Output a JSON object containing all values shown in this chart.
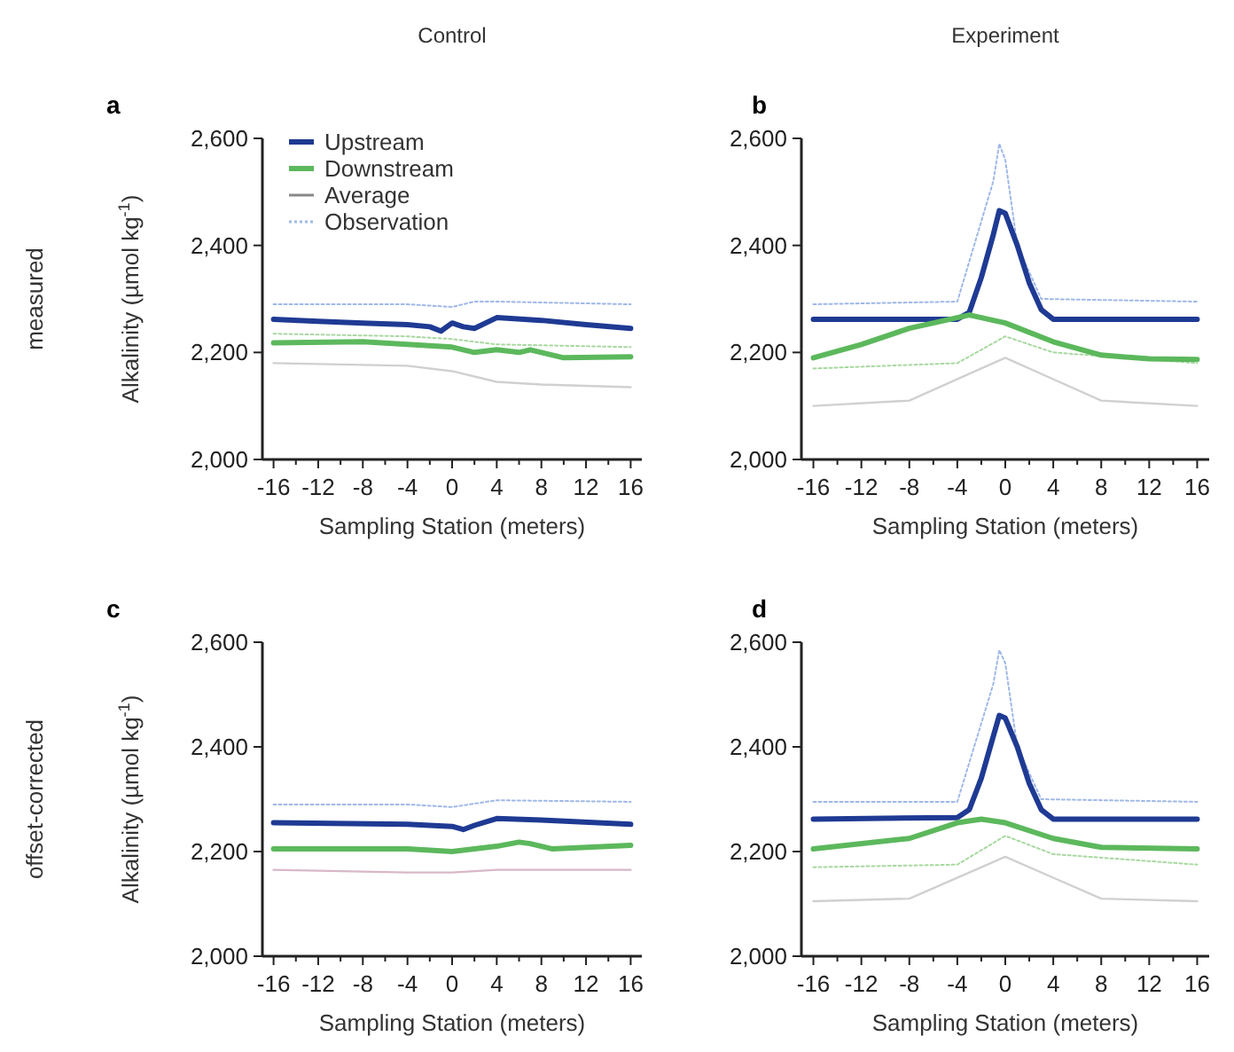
{
  "chart_data": [
    {
      "type": "line",
      "title": "Control",
      "subtitle": "a",
      "ylabel": "Alkalinity (µmol kg$^{-1}$)",
      "xlabel": "Sampling Station (meters)",
      "annotations": [
        "measured",
        "Average"
      ],
      "legend": "top left",
      "xlim": [
        -17,
        17
      ],
      "xticks": [
        {
          "value": -16,
          "label": "-16"
        },
        {
          "value": -14,
          "label": null
        },
        {
          "value": -12,
          "label": "-12"
        },
        {
          "value": -10,
          "label": null
        },
        {
          "value": -8,
          "label": "-8"
        },
        {
          "value": -6,
          "label": null
        },
        {
          "value": -4,
          "label": "-4"
        },
        {
          "value": -2,
          "label": null
        },
        {
          "value": 0,
          "label": "0"
        },
        {
          "value": 2,
          "label": null
        },
        {
          "value": 4,
          "label": "4"
        },
        {
          "value": 6,
          "label": null
        },
        {
          "value": 8,
          "label": "8"
        },
        {
          "value": 10,
          "label": null
        },
        {
          "value": 12,
          "label": "12"
        },
        {
          "value": 14,
          "label": null
        },
        {
          "value": 16,
          "label": "16"
        }
      ],
      "ylim": [
        2000,
        2600
      ],
      "yticks": [
        {
          "value": 2000,
          "label": "2,000"
        },
        {
          "value": 2200,
          "label": "2,200"
        },
        {
          "value": 2400,
          "label": "2,400"
        },
        {
          "value": 2600,
          "label": "2,600"
        }
      ],
      "series": [
        {
          "name": "Observation",
          "color": "#9fb8e8",
          "line_style": "dotted",
          "x": [
            -16,
            -4,
            0,
            2,
            4,
            16
          ],
          "values": [
            2290,
            2290,
            2285,
            2295,
            2295,
            2290
          ]
        },
        {
          "color": "#a8d8a0",
          "line_style": "dotted",
          "x": [
            -16,
            -4,
            0,
            4,
            16
          ],
          "values": [
            2235,
            2230,
            2225,
            2215,
            2210
          ]
        },
        {
          "color": "#d0d0d0",
          "line_style": "solid",
          "x": [
            -16,
            -4,
            0,
            4,
            8,
            16
          ],
          "values": [
            2180,
            2175,
            2165,
            2145,
            2140,
            2135
          ]
        },
        {
          "name": "Upstream",
          "color": "#1f3a93",
          "line_style": "solid",
          "x": [
            -16,
            -12,
            -8,
            -4,
            -2,
            -1,
            0,
            1,
            2,
            4,
            8,
            12,
            16
          ],
          "values": [
            2262,
            2258,
            2255,
            2252,
            2248,
            2240,
            2255,
            2248,
            2245,
            2265,
            2260,
            2252,
            2245
          ]
        },
        {
          "name": "Downstream",
          "color": "#5cb85c",
          "line_style": "solid",
          "x": [
            -16,
            -8,
            -4,
            0,
            2,
            4,
            6,
            7,
            10,
            16
          ],
          "values": [
            2218,
            2220,
            2215,
            2210,
            2200,
            2205,
            2200,
            2205,
            2190,
            2192
          ]
        }
      ]
    },
    {
      "type": "line",
      "title": "Experiment",
      "subtitle": "b",
      "xlabel": "Sampling Station (meters)",
      "xlim": [
        -17,
        17
      ],
      "xticks": [
        {
          "value": -16,
          "label": "-16"
        },
        {
          "value": -14,
          "label": null
        },
        {
          "value": -12,
          "label": "-12"
        },
        {
          "value": -10,
          "label": null
        },
        {
          "value": -8,
          "label": "-8"
        },
        {
          "value": -6,
          "label": null
        },
        {
          "value": -4,
          "label": "-4"
        },
        {
          "value": -2,
          "label": null
        },
        {
          "value": 0,
          "label": "0"
        },
        {
          "value": 2,
          "label": null
        },
        {
          "value": 4,
          "label": "4"
        },
        {
          "value": 6,
          "label": null
        },
        {
          "value": 8,
          "label": "8"
        },
        {
          "value": 10,
          "label": null
        },
        {
          "value": 12,
          "label": "12"
        },
        {
          "value": 14,
          "label": null
        },
        {
          "value": 16,
          "label": "16"
        }
      ],
      "ylim": [
        2000,
        2600
      ],
      "yticks": [
        {
          "value": 2000,
          "label": "2,000"
        },
        {
          "value": 2200,
          "label": "2,200"
        },
        {
          "value": 2400,
          "label": "2,400"
        },
        {
          "value": 2600,
          "label": "2,600"
        }
      ],
      "series": [
        {
          "color": "#9fb8e8",
          "line_style": "dotted",
          "x": [
            -16,
            -4,
            -1,
            -0.5,
            0,
            1,
            3,
            16
          ],
          "values": [
            2290,
            2295,
            2520,
            2590,
            2560,
            2400,
            2300,
            2295
          ]
        },
        {
          "color": "#a8d8a0",
          "line_style": "dotted",
          "x": [
            -16,
            -4,
            0,
            4,
            16
          ],
          "values": [
            2170,
            2180,
            2230,
            2200,
            2180
          ]
        },
        {
          "color": "#d0d0d0",
          "line_style": "solid",
          "x": [
            -16,
            -8,
            -3,
            0,
            4,
            8,
            16
          ],
          "values": [
            2100,
            2110,
            2160,
            2190,
            2150,
            2110,
            2100
          ]
        },
        {
          "color": "#1f3a93",
          "line_style": "solid",
          "x": [
            -16,
            -4,
            -3,
            -2,
            -1,
            -0.5,
            0,
            1,
            2,
            3,
            4,
            16
          ],
          "values": [
            2262,
            2262,
            2275,
            2340,
            2420,
            2465,
            2460,
            2400,
            2330,
            2280,
            2262,
            2262
          ]
        },
        {
          "color": "#5cb85c",
          "line_style": "solid",
          "x": [
            -16,
            -12,
            -8,
            -4,
            -3,
            0,
            4,
            8,
            12,
            16
          ],
          "values": [
            2190,
            2215,
            2245,
            2265,
            2270,
            2255,
            2220,
            2195,
            2188,
            2187
          ]
        }
      ]
    },
    {
      "type": "line",
      "subtitle": "c",
      "ylabel": "Alkalinity (µmol kg$^{-1}$)",
      "xlabel": "Sampling Station (meters)",
      "annotations": [
        "offset-corrected"
      ],
      "xlim": [
        -17,
        17
      ],
      "xticks": [
        {
          "value": -16,
          "label": "-16"
        },
        {
          "value": -14,
          "label": null
        },
        {
          "value": -12,
          "label": "-12"
        },
        {
          "value": -10,
          "label": null
        },
        {
          "value": -8,
          "label": "-8"
        },
        {
          "value": -6,
          "label": null
        },
        {
          "value": -4,
          "label": "-4"
        },
        {
          "value": -2,
          "label": null
        },
        {
          "value": 0,
          "label": "0"
        },
        {
          "value": 2,
          "label": null
        },
        {
          "value": 4,
          "label": "4"
        },
        {
          "value": 6,
          "label": null
        },
        {
          "value": 8,
          "label": "8"
        },
        {
          "value": 10,
          "label": null
        },
        {
          "value": 12,
          "label": "12"
        },
        {
          "value": 14,
          "label": null
        },
        {
          "value": 16,
          "label": "16"
        }
      ],
      "ylim": [
        2000,
        2600
      ],
      "yticks": [
        {
          "value": 2000,
          "label": "2,000"
        },
        {
          "value": 2200,
          "label": "2,200"
        },
        {
          "value": 2400,
          "label": "2,400"
        },
        {
          "value": 2600,
          "label": "2,600"
        }
      ],
      "series": [
        {
          "color": "#9fb8e8",
          "line_style": "dotted",
          "x": [
            -16,
            -4,
            0,
            4,
            16
          ],
          "values": [
            2290,
            2290,
            2285,
            2298,
            2295
          ]
        },
        {
          "color": "#d8b8c8",
          "line_style": "solid",
          "x": [
            -16,
            -4,
            0,
            4,
            16
          ],
          "values": [
            2165,
            2160,
            2160,
            2165,
            2165
          ]
        },
        {
          "color": "#1f3a93",
          "line_style": "solid",
          "x": [
            -16,
            -4,
            0,
            1,
            2,
            4,
            8,
            16
          ],
          "values": [
            2255,
            2252,
            2248,
            2242,
            2250,
            2263,
            2260,
            2252
          ]
        },
        {
          "color": "#5cb85c",
          "line_style": "solid",
          "x": [
            -16,
            -4,
            0,
            4,
            6,
            7,
            9,
            16
          ],
          "values": [
            2205,
            2205,
            2200,
            2210,
            2218,
            2215,
            2205,
            2212
          ]
        }
      ]
    },
    {
      "type": "line",
      "subtitle": "d",
      "xlabel": "Sampling Station (meters)",
      "xlim": [
        -17,
        17
      ],
      "xticks": [
        {
          "value": -16,
          "label": "-16"
        },
        {
          "value": -14,
          "label": null
        },
        {
          "value": -12,
          "label": "-12"
        },
        {
          "value": -10,
          "label": null
        },
        {
          "value": -8,
          "label": "-8"
        },
        {
          "value": -6,
          "label": null
        },
        {
          "value": -4,
          "label": "-4"
        },
        {
          "value": -2,
          "label": null
        },
        {
          "value": 0,
          "label": "0"
        },
        {
          "value": 2,
          "label": null
        },
        {
          "value": 4,
          "label": "4"
        },
        {
          "value": 6,
          "label": null
        },
        {
          "value": 8,
          "label": "8"
        },
        {
          "value": 10,
          "label": null
        },
        {
          "value": 12,
          "label": "12"
        },
        {
          "value": 14,
          "label": null
        },
        {
          "value": 16,
          "label": "16"
        }
      ],
      "ylim": [
        2000,
        2600
      ],
      "yticks": [
        {
          "value": 2000,
          "label": "2,000"
        },
        {
          "value": 2200,
          "label": "2,200"
        },
        {
          "value": 2400,
          "label": "2,400"
        },
        {
          "value": 2600,
          "label": "2,600"
        }
      ],
      "series": [
        {
          "color": "#9fb8e8",
          "line_style": "dotted",
          "x": [
            -16,
            -4,
            -1,
            -0.5,
            0,
            1,
            3,
            16
          ],
          "values": [
            2295,
            2295,
            2520,
            2585,
            2560,
            2400,
            2300,
            2295
          ]
        },
        {
          "color": "#a8d8a0",
          "line_style": "dotted",
          "x": [
            -16,
            -4,
            0,
            4,
            16
          ],
          "values": [
            2170,
            2175,
            2230,
            2195,
            2175
          ]
        },
        {
          "color": "#d0d0d0",
          "line_style": "solid",
          "x": [
            -16,
            -8,
            -3,
            0,
            4,
            8,
            16
          ],
          "values": [
            2105,
            2110,
            2160,
            2190,
            2150,
            2110,
            2105
          ]
        },
        {
          "color": "#1f3a93",
          "line_style": "solid",
          "x": [
            -16,
            -4,
            -3,
            -2,
            -1,
            -0.5,
            0,
            1,
            2,
            3,
            4,
            16
          ],
          "values": [
            2262,
            2265,
            2280,
            2340,
            2420,
            2460,
            2455,
            2400,
            2330,
            2280,
            2262,
            2262
          ]
        },
        {
          "color": "#5cb85c",
          "line_style": "solid",
          "x": [
            -16,
            -8,
            -4,
            -2,
            0,
            4,
            8,
            16
          ],
          "values": [
            2205,
            2225,
            2255,
            2262,
            2255,
            2225,
            2208,
            2205
          ]
        }
      ]
    }
  ]
}
